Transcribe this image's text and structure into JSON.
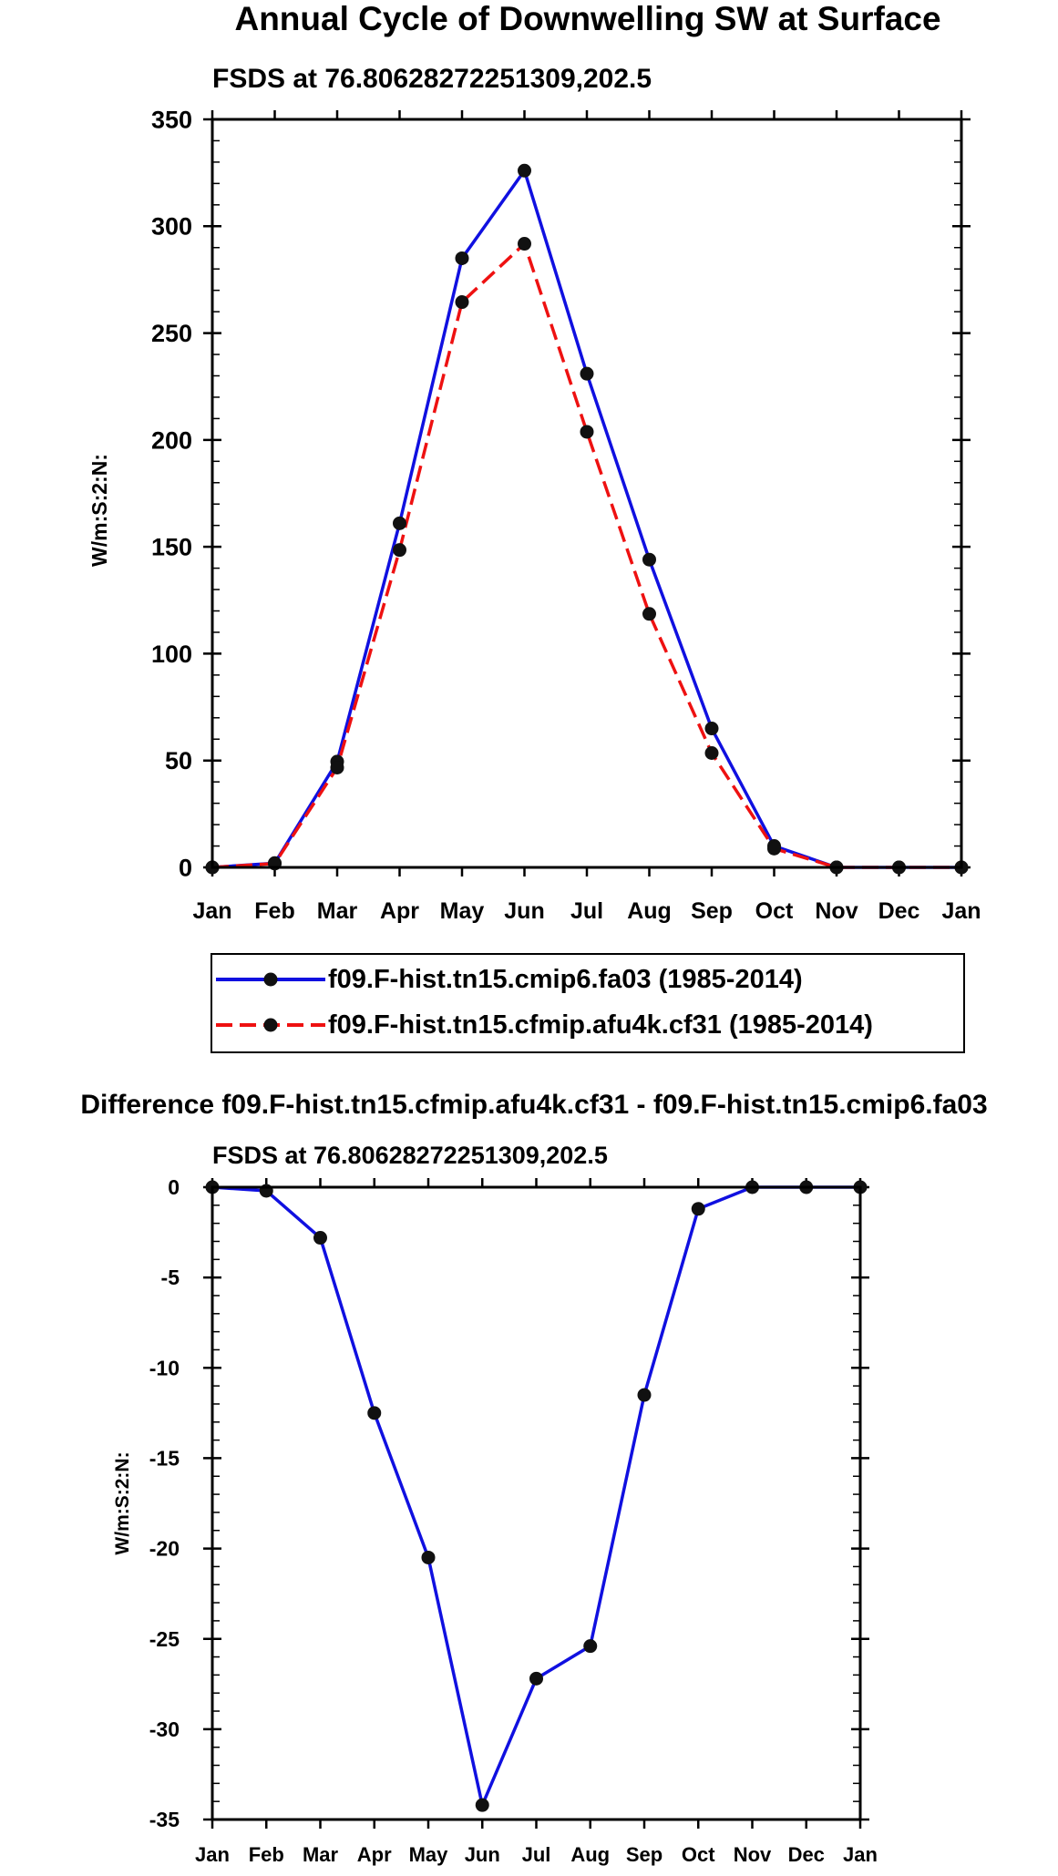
{
  "chart_data": [
    {
      "type": "line",
      "title": "Annual Cycle of Downwelling SW at Surface",
      "subtitle": "FSDS at 76.80628272251309,202.5",
      "xlabel": "",
      "ylabel": "W/m:S:2:N:",
      "categories": [
        "Jan",
        "Feb",
        "Mar",
        "Apr",
        "May",
        "Jun",
        "Jul",
        "Aug",
        "Sep",
        "Oct",
        "Nov",
        "Dec",
        "Jan"
      ],
      "ylim": [
        0,
        350
      ],
      "yticks": [
        0,
        50,
        100,
        150,
        200,
        250,
        300,
        350
      ],
      "ytick_labels": [
        "0",
        "50",
        "100",
        "150",
        "200",
        "250",
        "300",
        "350"
      ],
      "legend": "bottom",
      "series": [
        {
          "name": "f09.F-hist.tn15.cmip6.fa03 (1985-2014)",
          "color": "#1010e0",
          "dash": "solid",
          "values": [
            0,
            2,
            49.5,
            161,
            285,
            326,
            231,
            144,
            65,
            10,
            0,
            0,
            0
          ]
        },
        {
          "name": "f09.F-hist.tn15.cfmip.afu4k.cf31 (1985-2014)",
          "color": "#ee1111",
          "dash": "dashed",
          "values": [
            0,
            1.8,
            46.7,
            148.5,
            264.5,
            291.8,
            203.8,
            118.6,
            53.5,
            8.8,
            0,
            0,
            0
          ]
        }
      ]
    },
    {
      "type": "line",
      "title": "Difference f09.F-hist.tn15.cfmip.afu4k.cf31 - f09.F-hist.tn15.cmip6.fa03",
      "subtitle": "FSDS at 76.80628272251309,202.5",
      "xlabel": "",
      "ylabel": "W/m:S:2:N:",
      "categories": [
        "Jan",
        "Feb",
        "Mar",
        "Apr",
        "May",
        "Jun",
        "Jul",
        "Aug",
        "Sep",
        "Oct",
        "Nov",
        "Dec",
        "Jan"
      ],
      "ylim": [
        -35,
        0
      ],
      "yticks": [
        0,
        -5,
        -10,
        -15,
        -20,
        -25,
        -30,
        -35
      ],
      "ytick_labels": [
        "0",
        "-5",
        "-10",
        "-15",
        "-20",
        "-25",
        "-30",
        "-35"
      ],
      "series": [
        {
          "name": "Difference",
          "color": "#1010e0",
          "dash": "solid",
          "values": [
            0,
            -0.2,
            -2.8,
            -12.5,
            -20.5,
            -34.2,
            -27.2,
            -25.4,
            -11.5,
            -1.2,
            0,
            0,
            0
          ]
        }
      ]
    }
  ]
}
